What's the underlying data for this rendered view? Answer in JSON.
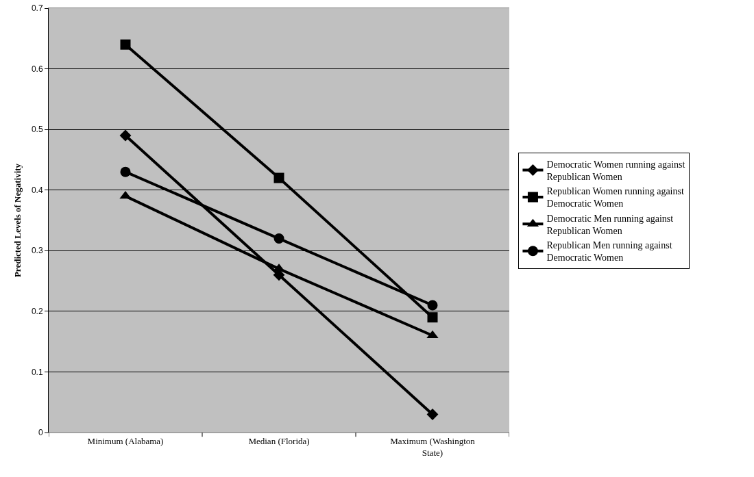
{
  "chart_data": {
    "type": "line",
    "ylabel": "Predicted Levels of Negativity",
    "categories": [
      "Minimum (Alabama)",
      "Median (Florida)",
      "Maximum (Washington State)"
    ],
    "series": [
      {
        "name": "Democratic Women running against Republican Women",
        "color": "#000000",
        "marker": "diamond",
        "values": [
          0.49,
          0.26,
          0.03
        ]
      },
      {
        "name": "Republican Women running against Democratic Women",
        "color": "#000000",
        "marker": "square",
        "values": [
          0.64,
          0.42,
          0.19
        ]
      },
      {
        "name": "Democratic Men running against Republican Women",
        "color": "#000000",
        "marker": "triangle",
        "values": [
          0.39,
          0.27,
          0.16
        ]
      },
      {
        "name": "Republican Men running against Democratic Women",
        "color": "#000000",
        "marker": "circle",
        "values": [
          0.43,
          0.32,
          0.21
        ]
      }
    ],
    "ylim": [
      0,
      0.7
    ],
    "yticks": [
      0,
      0.1,
      0.2,
      0.3,
      0.4,
      0.5,
      0.6,
      0.7
    ],
    "grid": "y",
    "legend": "right",
    "line_style": "solid"
  }
}
